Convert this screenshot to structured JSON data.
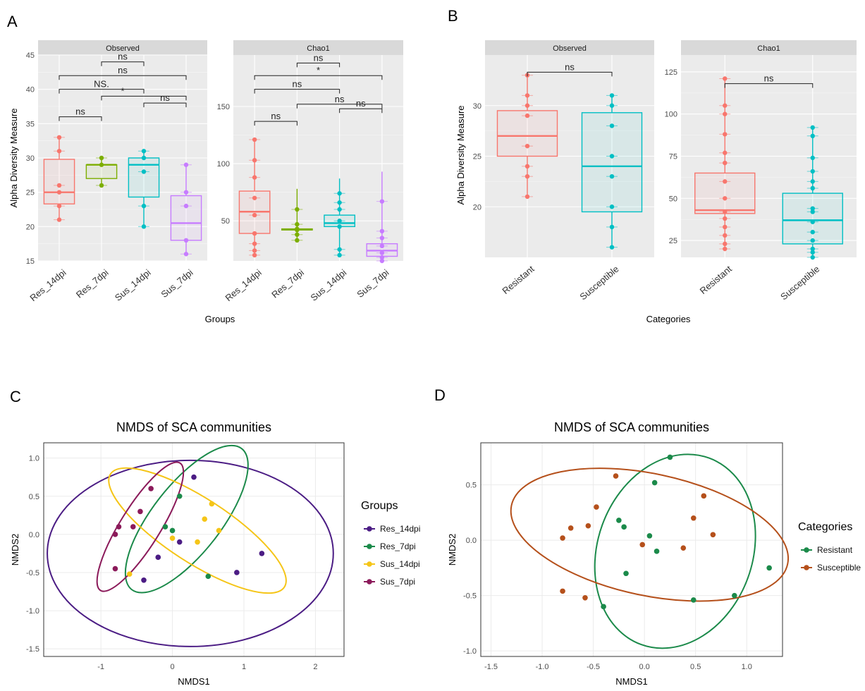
{
  "panels": {
    "A": "A",
    "B": "B",
    "C": "C",
    "D": "D"
  },
  "colors": {
    "Res_14dpi": "#f8766d",
    "Res_7dpi": "#7cae00",
    "Sus_14dpi": "#00bfc4",
    "Sus_7dpi": "#c77cff",
    "Resistant": "#f8766d",
    "Susceptible": "#00bfc4",
    "nmds_Res_14dpi": "#4b1c84",
    "nmds_Res_7dpi": "#1b8a4a",
    "nmds_Sus_14dpi": "#f5c518",
    "nmds_Sus_7dpi": "#8b1a5a",
    "nmds_Resistant": "#1b8a4a",
    "nmds_Susceptible": "#b5501b"
  },
  "chart_data": [
    {
      "type": "box",
      "panel": "A",
      "facet": "Observed",
      "ylabel": "Alpha Diversity Measure",
      "xlabel": "Groups",
      "ylim": [
        15,
        45
      ],
      "yticks": [
        15,
        20,
        25,
        30,
        35,
        40,
        45
      ],
      "categories": [
        "Res_14dpi",
        "Res_7dpi",
        "Sus_14dpi",
        "Sus_7dpi"
      ],
      "boxes": [
        {
          "min": 21,
          "q1": 23.3,
          "median": 25,
          "q3": 29.8,
          "max": 33,
          "points": [
            21,
            23,
            25,
            26,
            31,
            33
          ]
        },
        {
          "min": 26,
          "q1": 27,
          "median": 29,
          "q3": 29,
          "max": 30,
          "points": [
            26,
            29,
            30
          ]
        },
        {
          "min": 20,
          "q1": 24.3,
          "median": 29,
          "q3": 30,
          "max": 31,
          "points": [
            20,
            23,
            28,
            30,
            31
          ]
        },
        {
          "min": 16,
          "q1": 18,
          "median": 20.5,
          "q3": 24.5,
          "max": 29,
          "points": [
            16,
            18,
            23,
            25,
            29
          ]
        }
      ],
      "comparisons": [
        {
          "from": 0,
          "to": 1,
          "y": 36,
          "label": "ns"
        },
        {
          "from": 2,
          "to": 3,
          "y": 38,
          "label": "ns"
        },
        {
          "from": 1,
          "to": 3,
          "y": 39,
          "label": ""
        },
        {
          "from": 0,
          "to": 2,
          "y": 40,
          "label": "NS."
        },
        {
          "from": 0,
          "to": 3,
          "y": 42,
          "label": "ns"
        },
        {
          "from": 1,
          "to": 2,
          "y": 44,
          "label": "ns"
        }
      ],
      "marks": [
        "*"
      ]
    },
    {
      "type": "box",
      "panel": "A",
      "facet": "Chao1",
      "ylim": [
        15,
        195
      ],
      "yticks": [
        50,
        100,
        150
      ],
      "categories": [
        "Res_14dpi",
        "Res_7dpi",
        "Sus_14dpi",
        "Sus_7dpi"
      ],
      "boxes": [
        {
          "min": 20,
          "q1": 39,
          "median": 58,
          "q3": 76,
          "max": 121,
          "points": [
            20,
            24,
            30,
            39,
            55,
            70,
            88,
            103,
            121
          ]
        },
        {
          "min": 33,
          "q1": 42,
          "median": 42.5,
          "q3": 43,
          "max": 78,
          "points": [
            33,
            38,
            42,
            43,
            47,
            60
          ]
        },
        {
          "min": 20,
          "q1": 45,
          "median": 48,
          "q3": 55,
          "max": 87,
          "points": [
            20,
            25,
            45,
            50,
            60,
            66,
            74
          ]
        },
        {
          "min": 15,
          "q1": 19,
          "median": 24,
          "q3": 30,
          "max": 93,
          "points": [
            15,
            18,
            22,
            28,
            35,
            41,
            67
          ]
        }
      ],
      "comparisons": [
        {
          "from": 0,
          "to": 1,
          "y": 137,
          "label": "ns"
        },
        {
          "from": 2,
          "to": 3,
          "y": 148,
          "label": "ns"
        },
        {
          "from": 1,
          "to": 3,
          "y": 152,
          "label": "ns"
        },
        {
          "from": 0,
          "to": 2,
          "y": 165,
          "label": "ns"
        },
        {
          "from": 0,
          "to": 3,
          "y": 177,
          "label": ""
        },
        {
          "from": 1,
          "to": 2,
          "y": 188,
          "label": "ns"
        }
      ],
      "marks": [
        "*"
      ]
    },
    {
      "type": "box",
      "panel": "B",
      "facet": "Observed",
      "ylabel": "Alpha Diversity Measure",
      "xlabel": "Categories",
      "ylim": [
        15,
        35
      ],
      "yticks": [
        20,
        25,
        30
      ],
      "categories": [
        "Resistant",
        "Susceptible"
      ],
      "boxes": [
        {
          "min": 21,
          "q1": 25,
          "median": 27,
          "q3": 29.5,
          "max": 33,
          "points": [
            21,
            23,
            24,
            26,
            29,
            30,
            31,
            33
          ]
        },
        {
          "min": 16,
          "q1": 19.5,
          "median": 24,
          "q3": 29.3,
          "max": 31,
          "points": [
            16,
            18,
            20,
            23,
            25,
            28,
            30,
            31
          ]
        }
      ],
      "comparisons": [
        {
          "from": 0,
          "to": 1,
          "y": 33.3,
          "label": "ns"
        }
      ]
    },
    {
      "type": "box",
      "panel": "B",
      "facet": "Chao1",
      "ylim": [
        15,
        135
      ],
      "yticks": [
        25,
        50,
        75,
        100,
        125
      ],
      "categories": [
        "Resistant",
        "Susceptible"
      ],
      "boxes": [
        {
          "min": 20,
          "q1": 41,
          "median": 43,
          "q3": 65,
          "max": 121,
          "points": [
            20,
            23,
            28,
            33,
            38,
            42,
            50,
            60,
            71,
            77,
            88,
            100,
            105,
            121
          ]
        },
        {
          "min": 15,
          "q1": 23,
          "median": 37,
          "q3": 53,
          "max": 93,
          "points": [
            15,
            18,
            20,
            25,
            30,
            36,
            42,
            44,
            56,
            60,
            66,
            74,
            87,
            92
          ]
        }
      ],
      "comparisons": [
        {
          "from": 0,
          "to": 1,
          "y": 118,
          "label": "ns"
        }
      ]
    },
    {
      "type": "scatter",
      "panel": "C",
      "title": "NMDS of SCA communities",
      "xlabel": "NMDS1",
      "ylabel": "NMDS2",
      "xlim": [
        -1.8,
        2.4
      ],
      "ylim": [
        -1.6,
        1.2
      ],
      "xticks": [
        -1,
        0,
        1,
        2
      ],
      "yticks": [
        -1.5,
        -1.0,
        -0.5,
        0.0,
        0.5,
        1.0
      ],
      "legend_title": "Groups",
      "series": [
        {
          "name": "Res_14dpi",
          "points": [
            [
              0.3,
              0.75
            ],
            [
              -0.2,
              -0.3
            ],
            [
              0.1,
              -0.1
            ],
            [
              -0.4,
              -0.6
            ],
            [
              0.9,
              -0.5
            ],
            [
              1.25,
              -0.25
            ]
          ],
          "ellipse": {
            "cx": 0.25,
            "cy": -0.25,
            "rx": 2.0,
            "ry": 1.22,
            "angle": 0
          }
        },
        {
          "name": "Res_7dpi",
          "points": [
            [
              0.1,
              0.5
            ],
            [
              -0.1,
              0.1
            ],
            [
              0.0,
              0.05
            ],
            [
              0.5,
              -0.55
            ]
          ],
          "ellipse": {
            "cx": 0.2,
            "cy": 0.2,
            "rx": 1.25,
            "ry": 0.45,
            "angle": -52
          }
        },
        {
          "name": "Sus_14dpi",
          "points": [
            [
              0.55,
              0.4
            ],
            [
              0.45,
              0.2
            ],
            [
              0.65,
              0.05
            ],
            [
              0.35,
              -0.1
            ],
            [
              0.0,
              -0.05
            ],
            [
              -0.6,
              -0.52
            ]
          ],
          "ellipse": {
            "cx": 0.35,
            "cy": 0.05,
            "rx": 1.45,
            "ry": 0.42,
            "angle": 33
          }
        },
        {
          "name": "Sus_7dpi",
          "points": [
            [
              -0.3,
              0.6
            ],
            [
              -0.45,
              0.3
            ],
            [
              -0.55,
              0.1
            ],
            [
              -0.8,
              0.0
            ],
            [
              -0.75,
              0.1
            ],
            [
              -0.8,
              -0.45
            ]
          ],
          "ellipse": {
            "cx": -0.45,
            "cy": 0.1,
            "rx": 1.05,
            "ry": 0.26,
            "angle": -58
          }
        }
      ]
    },
    {
      "type": "scatter",
      "panel": "D",
      "title": "NMDS of SCA communities",
      "xlabel": "NMDS1",
      "ylabel": "NMDS2",
      "xlim": [
        -1.6,
        1.35
      ],
      "ylim": [
        -1.05,
        0.88
      ],
      "xticks": [
        -1.5,
        -1.0,
        -0.5,
        0.0,
        0.5,
        1.0
      ],
      "yticks": [
        -1.0,
        -0.5,
        0.0,
        0.5
      ],
      "legend_title": "Categories",
      "series": [
        {
          "name": "Resistant",
          "points": [
            [
              0.25,
              0.75
            ],
            [
              0.1,
              0.52
            ],
            [
              -0.25,
              0.18
            ],
            [
              -0.2,
              0.12
            ],
            [
              0.05,
              0.04
            ],
            [
              0.12,
              -0.1
            ],
            [
              -0.18,
              -0.3
            ],
            [
              -0.4,
              -0.6
            ],
            [
              0.48,
              -0.54
            ],
            [
              0.88,
              -0.5
            ],
            [
              1.22,
              -0.25
            ]
          ],
          "ellipse": {
            "cx": 0.3,
            "cy": -0.1,
            "rx": 0.97,
            "ry": 0.7,
            "angle": -70
          }
        },
        {
          "name": "Susceptible",
          "points": [
            [
              -0.28,
              0.58
            ],
            [
              -0.47,
              0.3
            ],
            [
              -0.72,
              0.11
            ],
            [
              -0.55,
              0.13
            ],
            [
              -0.8,
              0.02
            ],
            [
              -0.02,
              -0.04
            ],
            [
              0.38,
              -0.07
            ],
            [
              0.48,
              0.2
            ],
            [
              0.58,
              0.4
            ],
            [
              0.67,
              0.05
            ],
            [
              -0.8,
              -0.46
            ],
            [
              -0.58,
              -0.52
            ]
          ],
          "ellipse": {
            "cx": 0.05,
            "cy": 0.05,
            "rx": 1.38,
            "ry": 0.55,
            "angle": 12
          }
        }
      ]
    }
  ]
}
